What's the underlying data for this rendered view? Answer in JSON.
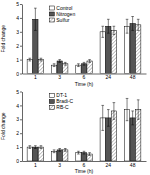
{
  "chart_data": [
    {
      "type": "bar",
      "x_label": "Time (h)",
      "y_label": "Fold change",
      "categories": [
        "1",
        "3",
        "6",
        "24",
        "48"
      ],
      "series": [
        {
          "name": "Control",
          "color": "#ffffff",
          "values": [
            1.0,
            0.6,
            0.6,
            3.0,
            3.4
          ],
          "errors": [
            0.1,
            0.1,
            0.1,
            0.4,
            0.5
          ]
        },
        {
          "name": "Nitrogen",
          "color": "#555555",
          "values": [
            3.9,
            0.9,
            0.7,
            3.4,
            3.6
          ],
          "errors": [
            0.8,
            0.1,
            0.1,
            0.5,
            0.5
          ]
        },
        {
          "name": "Sulfur",
          "color": "#888888",
          "values": [
            1.0,
            0.7,
            0.9,
            3.1,
            3.5
          ],
          "errors": [
            0.1,
            0.1,
            0.1,
            0.3,
            0.4
          ]
        }
      ],
      "ylim": [
        0,
        5
      ],
      "yticks": [
        0,
        1,
        2,
        3,
        4,
        5
      ],
      "legend": "upper left"
    },
    {
      "type": "bar",
      "x_label": "Time (h)",
      "y_label": "Fold change",
      "categories": [
        "1",
        "3",
        "6",
        "24",
        "48"
      ],
      "series": [
        {
          "name": "DT-1",
          "color": "#ffffff",
          "values": [
            1.0,
            0.7,
            0.6,
            3.1,
            3.7
          ],
          "errors": [
            0.1,
            0.1,
            0.1,
            0.9,
            0.8
          ]
        },
        {
          "name": "Bradi-C",
          "color": "#555555",
          "values": [
            1.0,
            0.8,
            0.6,
            3.1,
            3.1
          ],
          "errors": [
            0.1,
            0.1,
            0.1,
            0.6,
            0.5
          ]
        },
        {
          "name": "RB-C",
          "color": "#888888",
          "values": [
            1.0,
            0.8,
            0.5,
            3.6,
            3.7
          ],
          "errors": [
            0.1,
            0.1,
            0.1,
            0.6,
            0.7
          ]
        }
      ],
      "ylim": [
        0,
        5
      ],
      "yticks": [
        0,
        1,
        2,
        3,
        4,
        5
      ],
      "legend": "upper left"
    }
  ]
}
